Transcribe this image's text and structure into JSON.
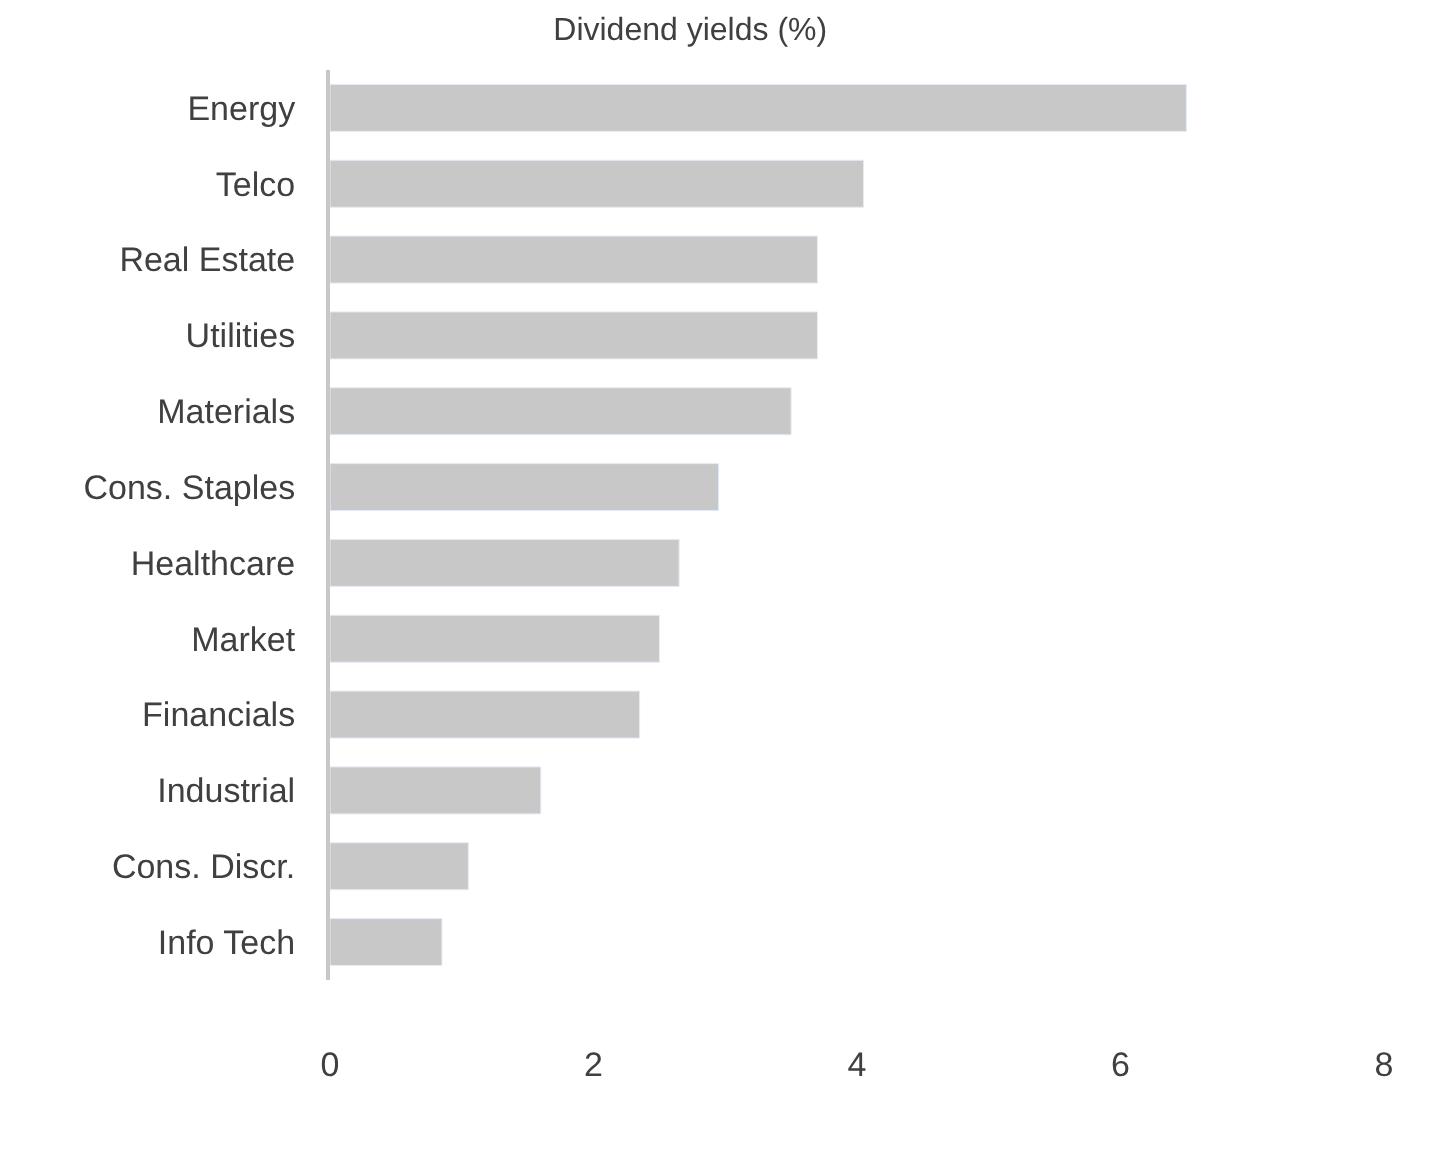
{
  "chart_data": {
    "type": "bar",
    "orientation": "horizontal",
    "title": "Dividend yields (%)",
    "categories": [
      "Energy",
      "Telco",
      "Real Estate",
      "Utilities",
      "Materials",
      "Cons. Staples",
      "Healthcare",
      "Market",
      "Financials",
      "Industrial",
      "Cons. Discr.",
      "Info Tech"
    ],
    "values": [
      6.5,
      4.05,
      3.7,
      3.7,
      3.5,
      2.95,
      2.65,
      2.5,
      2.35,
      1.6,
      1.05,
      0.85
    ],
    "color": "#c8c8c9",
    "xlim": [
      0,
      8
    ],
    "xticks": [
      0,
      2,
      4,
      6,
      8
    ],
    "legend": false
  }
}
